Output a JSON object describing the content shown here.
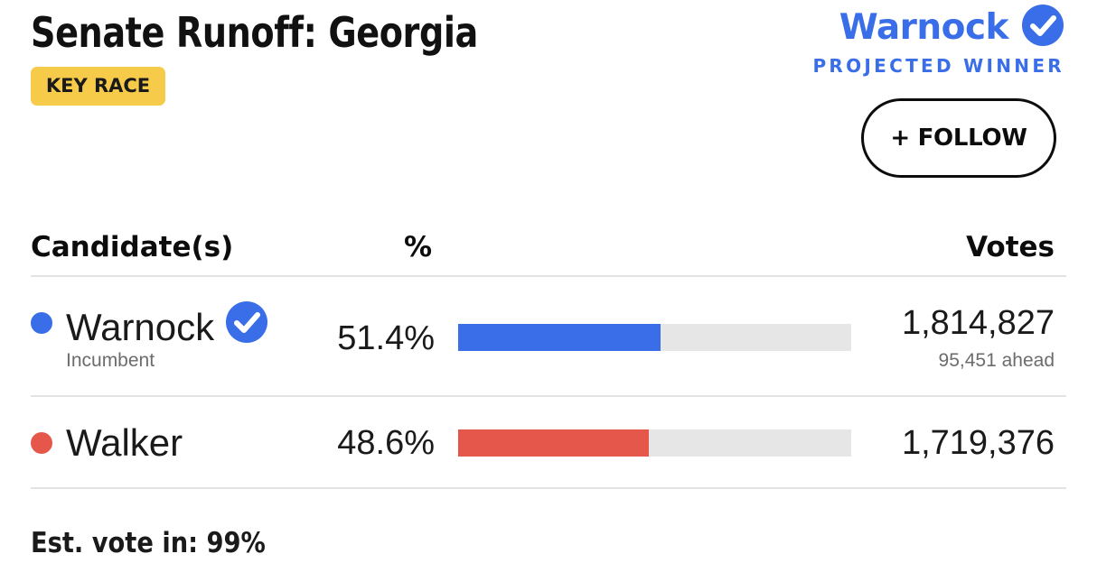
{
  "race": {
    "title": "Senate Runoff: Georgia",
    "badge": "KEY RACE"
  },
  "winner": {
    "name": "Warnock",
    "label": "PROJECTED WINNER",
    "icon": "check-circle-icon",
    "color": "#3a6ee9"
  },
  "follow_button": {
    "label": "+ FOLLOW"
  },
  "table": {
    "headers": {
      "candidate": "Candidate(s)",
      "percent": "%",
      "votes": "Votes"
    },
    "rows": [
      {
        "name": "Warnock",
        "subtitle": "Incumbent",
        "percent_label": "51.4%",
        "percent": 51.4,
        "votes": "1,814,827",
        "lead": "95,451 ahead",
        "color": "#3a6ee9",
        "winner": true
      },
      {
        "name": "Walker",
        "percent_label": "48.6%",
        "percent": 48.6,
        "votes": "1,719,376",
        "color": "#e6574b",
        "winner": false
      }
    ]
  },
  "footer": {
    "estimate": "Est. vote in: 99%"
  }
}
